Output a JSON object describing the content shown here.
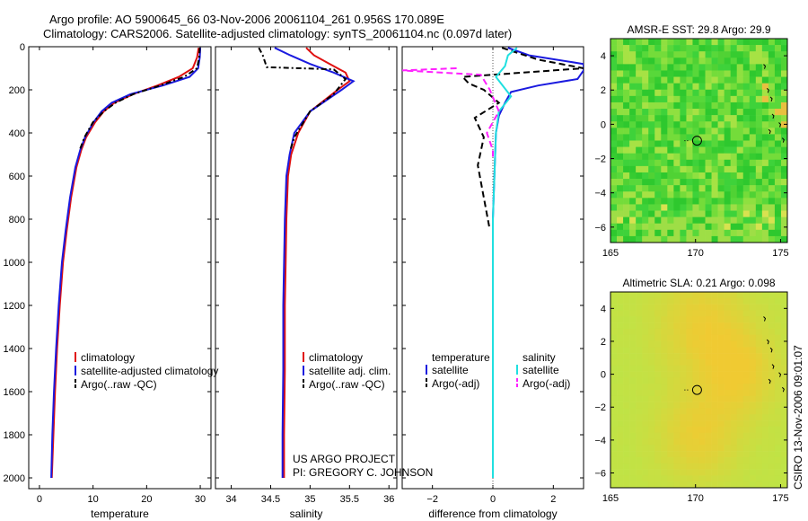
{
  "titles": {
    "line1": "Argo profile: AO 5900645_66 03-Nov-2006 20061104_261 0.956S 170.089E",
    "line2": "Climatology: CARS2006. Satellite-adjusted climatology: synTS_20061104.nc (0.097d later)"
  },
  "colors": {
    "clim": "#e01010",
    "sat": "#1a1adf",
    "argo": "#000000",
    "sal_sat": "#20e0e0",
    "sal_argo": "#ff20ff"
  },
  "chart_data": [
    {
      "id": "temperature",
      "type": "line",
      "xlabel": "temperature",
      "ylabel": "",
      "xlim": [
        -2,
        32
      ],
      "ylim": [
        2050,
        0
      ],
      "xticks": [
        0,
        10,
        20,
        30
      ],
      "yticks": [
        0,
        200,
        400,
        600,
        800,
        1000,
        1200,
        1400,
        1600,
        1800,
        2000
      ],
      "series": [
        {
          "name": "climatology",
          "color": "#e01010",
          "dash": "",
          "x": [
            29.7,
            29.4,
            28.6,
            26.0,
            22.0,
            17.5,
            14.0,
            12.0,
            10.4,
            8.7,
            7.8,
            6.9,
            5.9,
            5.1,
            4.4,
            3.8,
            3.3,
            2.9,
            2.6,
            2.3
          ],
          "y": [
            5,
            50,
            100,
            140,
            180,
            220,
            260,
            300,
            350,
            420,
            480,
            560,
            700,
            850,
            1000,
            1200,
            1400,
            1600,
            1800,
            2000
          ]
        },
        {
          "name": "satellite-adjusted climatology",
          "color": "#1a1adf",
          "dash": "",
          "x": [
            30.0,
            29.9,
            29.6,
            28.0,
            23.0,
            17.0,
            13.5,
            11.6,
            10.1,
            8.5,
            7.6,
            6.7,
            5.7,
            4.9,
            4.2,
            3.6,
            3.1,
            2.7,
            2.4,
            2.2
          ],
          "y": [
            5,
            50,
            100,
            140,
            180,
            220,
            260,
            300,
            350,
            420,
            480,
            560,
            700,
            850,
            1000,
            1200,
            1400,
            1600,
            1800,
            2000
          ]
        },
        {
          "name": "Argo(..raw -QC)",
          "color": "#000000",
          "dash": "6,3,2,3",
          "x": [
            29.9,
            29.8,
            29.4,
            27.0,
            22.5,
            17.5,
            14.2,
            12.0,
            10.0,
            8.4,
            7.5
          ],
          "y": [
            5,
            50,
            100,
            140,
            180,
            220,
            260,
            300,
            350,
            420,
            480
          ]
        }
      ],
      "legend": [
        "climatology",
        "satellite-adjusted climatology",
        "Argo(..raw -QC)"
      ]
    },
    {
      "id": "salinity",
      "type": "line",
      "xlabel": "salinity",
      "xlim": [
        33.8,
        36.1
      ],
      "ylim": [
        2050,
        0
      ],
      "xticks": [
        34,
        34.5,
        35,
        35.5,
        36
      ],
      "tick_labels": [
        "34",
        "34.5",
        "35",
        "35.5",
        "36"
      ],
      "series": [
        {
          "name": "climatology",
          "color": "#e01010",
          "dash": "",
          "x": [
            34.95,
            35.05,
            35.25,
            35.45,
            35.5,
            35.35,
            35.0,
            34.85,
            34.76,
            34.72,
            34.7,
            34.69,
            34.68,
            34.68,
            34.67,
            34.67
          ],
          "y": [
            5,
            40,
            80,
            120,
            160,
            200,
            300,
            400,
            500,
            600,
            800,
            1000,
            1200,
            1500,
            1800,
            2000
          ]
        },
        {
          "name": "satellite adj. clim.",
          "color": "#1a1adf",
          "dash": "",
          "x": [
            34.55,
            34.75,
            35.0,
            35.3,
            35.55,
            35.4,
            35.0,
            34.8,
            34.74,
            34.7,
            34.68,
            34.67,
            34.66,
            34.66,
            34.65,
            34.65
          ],
          "y": [
            5,
            40,
            80,
            120,
            160,
            200,
            300,
            400,
            500,
            600,
            800,
            1000,
            1200,
            1500,
            1800,
            2000
          ]
        },
        {
          "name": "Argo(..raw -QC)",
          "color": "#000000",
          "dash": "6,3,2,3",
          "x": [
            34.35,
            34.4,
            34.45,
            35.3,
            35.45,
            35.3,
            35.0,
            34.8,
            34.75
          ],
          "y": [
            5,
            40,
            95,
            105,
            150,
            220,
            300,
            420,
            480
          ]
        }
      ],
      "legend": [
        "climatology",
        "satellite adj. clim.",
        "Argo(..raw -QC)"
      ],
      "footer": [
        "US ARGO PROJECT",
        "PI: GREGORY C. JOHNSON"
      ]
    },
    {
      "id": "difference",
      "type": "line",
      "xlabel": "difference from climatology",
      "xlim": [
        -3,
        3
      ],
      "ylim": [
        2050,
        0
      ],
      "xticks": [
        -2,
        0,
        2
      ],
      "tick_labels": [
        "−2",
        "0",
        "2"
      ],
      "series": [
        {
          "name": "temperature satellite",
          "color": "#1a1adf",
          "dash": "",
          "x": [
            0.5,
            1.2,
            3.0,
            3.0,
            2.8,
            1.5,
            0.6,
            0.4,
            0.2,
            0.1,
            0.05,
            0.0,
            0.0,
            0.0
          ],
          "y": [
            5,
            40,
            80,
            110,
            150,
            180,
            210,
            260,
            320,
            400,
            600,
            800,
            1200,
            2000
          ]
        },
        {
          "name": "temperature Argo(-adj)",
          "color": "#000000",
          "dash": "7,4",
          "x": [
            0.3,
            1.5,
            3.0,
            -1.0,
            -0.8,
            -0.3,
            0.2,
            -0.6,
            -0.3,
            -0.5,
            -0.3,
            -0.1
          ],
          "y": [
            5,
            60,
            100,
            140,
            170,
            200,
            260,
            330,
            420,
            550,
            700,
            850
          ]
        },
        {
          "name": "salinity satellite",
          "color": "#20e0e0",
          "dash": "",
          "x": [
            0.8,
            0.5,
            0.4,
            0.1,
            0.6,
            0.2,
            0.1,
            0.05,
            0.0,
            0.0,
            0.0
          ],
          "y": [
            5,
            40,
            90,
            140,
            230,
            300,
            400,
            600,
            800,
            1200,
            2000
          ]
        },
        {
          "name": "salinity Argo(-adj)",
          "color": "#ff20ff",
          "dash": "7,4",
          "x": [
            -1.2,
            -3.0,
            -0.4,
            -0.1,
            0.2,
            -0.2,
            0.0,
            0.0
          ],
          "y": [
            100,
            110,
            130,
            200,
            300,
            400,
            480,
            520
          ]
        }
      ],
      "legend_headers": [
        "temperature",
        "salinity"
      ],
      "legend_left": [
        "satellite",
        "Argo(-adj)"
      ],
      "legend_right": [
        "satellite",
        "Argo(-adj)"
      ]
    },
    {
      "id": "sst_map",
      "type": "heatmap",
      "title": "AMSR-E SST: 29.8 Argo: 29.9",
      "xticks": [
        165,
        170,
        175
      ],
      "yticks": [
        4,
        2,
        0,
        -2,
        -4,
        -6
      ],
      "tick_labels_y": [
        "4",
        "2",
        "0",
        "−2",
        "−4",
        "−6"
      ],
      "xlim": [
        165,
        175.4
      ],
      "ylim": [
        -6.9,
        5
      ],
      "marker": {
        "lon": 170.089,
        "lat": -0.956
      }
    },
    {
      "id": "sla_map",
      "type": "heatmap",
      "title": "Altimetric SLA: 0.21 Argo: 0.098",
      "xticks": [
        165,
        170,
        175
      ],
      "yticks": [
        4,
        2,
        0,
        -2,
        -4,
        -6
      ],
      "tick_labels_y": [
        "4",
        "2",
        "0",
        "−2",
        "−4",
        "−6"
      ],
      "xlim": [
        165,
        175.4
      ],
      "ylim": [
        -6.9,
        5
      ],
      "marker": {
        "lon": 170.089,
        "lat": -0.956
      }
    }
  ],
  "side_label": "CSIRO 13-Nov-2006 09:01:07"
}
